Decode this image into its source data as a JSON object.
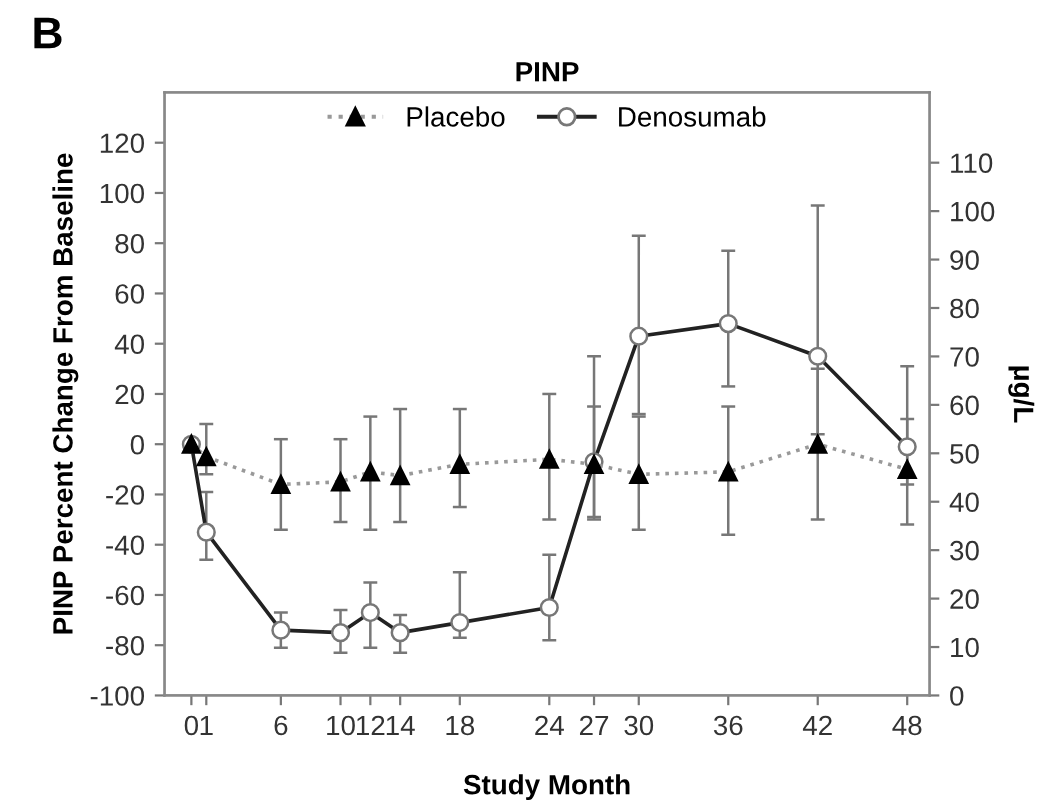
{
  "chart_data": {
    "type": "line",
    "title": "PINP",
    "annotations": [
      "B"
    ],
    "xlabel": "Study Month",
    "ylabel": "PINP Percent Change From Baseline",
    "y2label": "μg/L",
    "xlim": [
      -1.8,
      49.5
    ],
    "xticks": [
      0,
      1,
      6,
      10,
      12,
      14,
      18,
      24,
      27,
      30,
      36,
      42,
      48
    ],
    "ylim": [
      -100,
      140
    ],
    "yticks": [
      -100,
      -80,
      -60,
      -40,
      -20,
      0,
      20,
      40,
      60,
      80,
      100,
      120
    ],
    "y2lim": [
      0,
      124.5
    ],
    "y2ticks": [
      0,
      10,
      20,
      30,
      40,
      50,
      60,
      70,
      80,
      90,
      100,
      110
    ],
    "grid": false,
    "legend": "top",
    "series": [
      {
        "name": "Denosumab",
        "color": "#222222",
        "marker": "circle",
        "line_style": "solid",
        "x": [
          0,
          1,
          6,
          10,
          12,
          14,
          18,
          24,
          27,
          30,
          36,
          42,
          48
        ],
        "values": [
          0,
          -35,
          -74,
          -75,
          -67,
          -75,
          -71,
          -65,
          -7,
          43,
          48,
          35,
          -1
        ],
        "errors": [
          null,
          [
            -46,
            -19
          ],
          [
            -81,
            -67
          ],
          [
            -83,
            -66
          ],
          [
            -81,
            -55
          ],
          [
            -83,
            -68
          ],
          [
            -77,
            -51
          ],
          [
            -78,
            -44
          ],
          [
            -30,
            35
          ],
          [
            12,
            83
          ],
          [
            23,
            77
          ],
          [
            4,
            95
          ],
          [
            -16,
            31
          ]
        ]
      },
      {
        "name": "Placebo",
        "color": "#999999",
        "marker": "triangle",
        "line_style": "dotted",
        "x": [
          0,
          1,
          6,
          10,
          12,
          14,
          18,
          24,
          27,
          30,
          36,
          42,
          48
        ],
        "values": [
          0,
          -5,
          -16,
          -15,
          -11,
          -12.5,
          -8,
          -6,
          -8,
          -12,
          -11,
          0,
          -10
        ],
        "errors": [
          null,
          [
            -12,
            8
          ],
          [
            -34,
            2
          ],
          [
            -31,
            2
          ],
          [
            -34,
            11
          ],
          [
            -31,
            14
          ],
          [
            -25,
            14
          ],
          [
            -30,
            20
          ],
          [
            -29,
            15
          ],
          [
            -34,
            11
          ],
          [
            -36,
            15
          ],
          [
            -30,
            30
          ],
          [
            -32,
            10
          ]
        ]
      }
    ]
  }
}
